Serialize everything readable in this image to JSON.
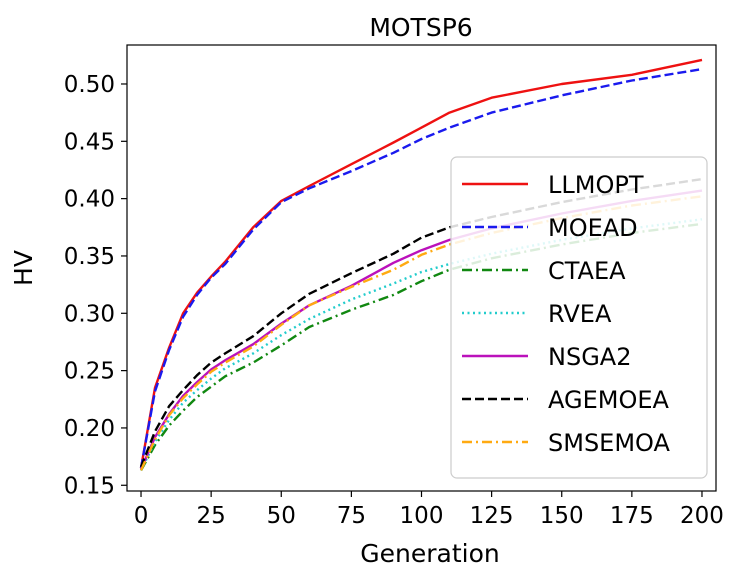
{
  "chart_data": {
    "type": "line",
    "title": "MOTSP6",
    "xlabel": "Generation",
    "ylabel": "HV",
    "xlim": [
      -5,
      205
    ],
    "ylim": [
      0.145,
      0.534
    ],
    "xticks": [
      0,
      25,
      50,
      75,
      100,
      125,
      150,
      175,
      200
    ],
    "yticks": [
      0.15,
      0.2,
      0.25,
      0.3,
      0.35,
      0.4,
      0.45,
      0.5
    ],
    "grid": false,
    "legend_position": "right",
    "x": [
      0,
      5,
      10,
      15,
      20,
      25,
      30,
      40,
      50,
      60,
      75,
      90,
      100,
      110,
      125,
      150,
      175,
      200
    ],
    "series": [
      {
        "name": "LLMOPT",
        "color": "#ee1111",
        "dash": "solid",
        "values": [
          0.165,
          0.235,
          0.27,
          0.3,
          0.318,
          0.332,
          0.345,
          0.375,
          0.398,
          0.411,
          0.43,
          0.449,
          0.462,
          0.475,
          0.488,
          0.5,
          0.508,
          0.521
        ]
      },
      {
        "name": "MOEAD",
        "color": "#1a1aee",
        "dash": "dashed",
        "values": [
          0.165,
          0.232,
          0.268,
          0.297,
          0.316,
          0.331,
          0.343,
          0.373,
          0.397,
          0.409,
          0.424,
          0.44,
          0.452,
          0.462,
          0.475,
          0.49,
          0.503,
          0.513
        ]
      },
      {
        "name": "CTAEA",
        "color": "#118811",
        "dash": "dashdot",
        "values": [
          0.163,
          0.185,
          0.202,
          0.215,
          0.227,
          0.236,
          0.245,
          0.257,
          0.272,
          0.288,
          0.303,
          0.316,
          0.328,
          0.338,
          0.348,
          0.36,
          0.37,
          0.378
        ]
      },
      {
        "name": "RVEA",
        "color": "#22cccc",
        "dash": "dotted",
        "values": [
          0.163,
          0.188,
          0.207,
          0.222,
          0.233,
          0.243,
          0.252,
          0.265,
          0.281,
          0.295,
          0.312,
          0.326,
          0.336,
          0.343,
          0.352,
          0.364,
          0.374,
          0.382
        ]
      },
      {
        "name": "NSGA2",
        "color": "#bb11bb",
        "dash": "solid",
        "values": [
          0.164,
          0.192,
          0.212,
          0.228,
          0.24,
          0.251,
          0.259,
          0.273,
          0.291,
          0.307,
          0.324,
          0.344,
          0.355,
          0.364,
          0.374,
          0.387,
          0.398,
          0.407
        ]
      },
      {
        "name": "AGEMOEA",
        "color": "#000000",
        "dash": "dashed",
        "values": [
          0.166,
          0.197,
          0.219,
          0.233,
          0.246,
          0.257,
          0.265,
          0.28,
          0.3,
          0.317,
          0.335,
          0.352,
          0.366,
          0.375,
          0.384,
          0.397,
          0.408,
          0.417
        ]
      },
      {
        "name": "SMSEMOA",
        "color": "#ffaa11",
        "dash": "dashdot",
        "values": [
          0.163,
          0.19,
          0.211,
          0.226,
          0.238,
          0.249,
          0.257,
          0.271,
          0.29,
          0.307,
          0.323,
          0.338,
          0.351,
          0.36,
          0.37,
          0.383,
          0.394,
          0.402
        ]
      }
    ]
  }
}
